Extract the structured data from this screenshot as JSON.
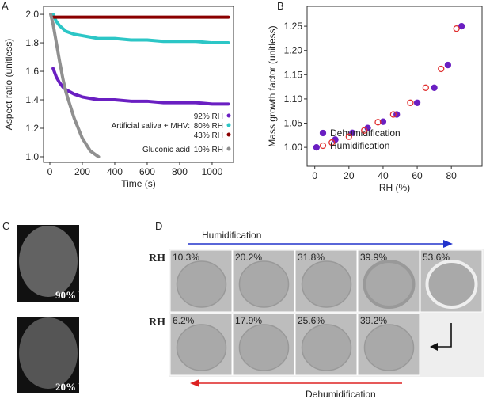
{
  "chart_data": [
    {
      "type": "line",
      "panel": "A",
      "xlabel": "Time (s)",
      "ylabel": "Aspect ratio (unitless)",
      "x": [
        5,
        20,
        40,
        60,
        80,
        100,
        150,
        200,
        250,
        300,
        400,
        500,
        600,
        700,
        800,
        900,
        1000,
        1100
      ],
      "series": [
        {
          "name": "92% RH",
          "color": "#6a1fc2",
          "values": [
            null,
            1.62,
            1.56,
            1.52,
            1.49,
            1.47,
            1.44,
            1.42,
            1.41,
            1.4,
            1.4,
            1.39,
            1.39,
            1.38,
            1.38,
            1.38,
            1.37,
            1.37
          ]
        },
        {
          "name": "80% RH",
          "color": "#2cc6c6",
          "values": [
            null,
            2.0,
            1.95,
            1.92,
            1.9,
            1.88,
            1.86,
            1.85,
            1.84,
            1.83,
            1.83,
            1.82,
            1.82,
            1.81,
            1.81,
            1.81,
            1.8,
            1.8
          ]
        },
        {
          "name": "43% RH",
          "color": "#8b0000",
          "values": [
            null,
            1.98,
            1.98,
            1.98,
            1.98,
            1.98,
            1.98,
            1.98,
            1.98,
            1.98,
            1.98,
            1.98,
            1.98,
            1.98,
            1.98,
            1.98,
            1.98,
            1.98
          ]
        },
        {
          "name": "10% RH",
          "color": "#909090",
          "values": [
            2.0,
            1.93,
            1.8,
            1.67,
            1.55,
            1.45,
            1.27,
            1.13,
            1.04,
            1.0,
            null,
            null,
            null,
            null,
            null,
            null,
            null,
            null
          ]
        }
      ],
      "annotations": [
        "Artificial saliva + MHV:",
        "Gluconic acid"
      ],
      "xlim": [
        -39,
        1132
      ],
      "xticks": [
        0,
        200,
        400,
        600,
        800,
        1000
      ],
      "ylim": [
        0.961,
        2.056
      ],
      "yticks": [
        {
          "value": 1.0,
          "label": "1.0"
        },
        1.2,
        1.4,
        1.6,
        1.8,
        {
          "value": 2.0,
          "label": "2.0"
        }
      ]
    },
    {
      "type": "scatter",
      "panel": "B",
      "xlabel": "RH (%)",
      "ylabel": "Mass growth factor (unitless)",
      "series": [
        {
          "name": "Dehumidification",
          "color": "#6a1fc2",
          "filled": true,
          "x": [
            1,
            12,
            22,
            31,
            40,
            48,
            60,
            70,
            78,
            86
          ],
          "values": [
            1.0,
            1.016,
            1.03,
            1.04,
            1.053,
            1.068,
            1.092,
            1.123,
            1.17,
            1.25
          ]
        },
        {
          "name": "Humidification",
          "color": "#e03030",
          "filled": false,
          "x": [
            10,
            20,
            29,
            37,
            46,
            56,
            65,
            74,
            83
          ],
          "values": [
            1.01,
            1.022,
            1.035,
            1.052,
            1.068,
            1.092,
            1.123,
            1.162,
            1.245
          ]
        }
      ],
      "xlim": [
        -4.5,
        98
      ],
      "xticks": [
        0,
        20,
        40,
        60,
        80
      ],
      "ylim": [
        0.961,
        1.291
      ],
      "yticks": [
        {
          "value": 1.0,
          "label": "1.00"
        },
        1.05,
        {
          "value": 1.1,
          "label": "1.10"
        },
        1.15,
        {
          "value": 1.2,
          "label": "1.20"
        },
        1.25
      ]
    }
  ],
  "panel_c": {
    "label": "C",
    "images": [
      "90% RH",
      "20% RH"
    ]
  },
  "panel_d": {
    "label": "D",
    "top_arrow": "Humidification",
    "bottom_arrow": "Dehumidification",
    "row_label": "RH",
    "row1": [
      "10.3%",
      "20.2%",
      "31.8%",
      "39.9%",
      "53.6%"
    ],
    "row2": [
      "6.2%",
      "17.9%",
      "25.6%",
      "39.2%"
    ]
  }
}
